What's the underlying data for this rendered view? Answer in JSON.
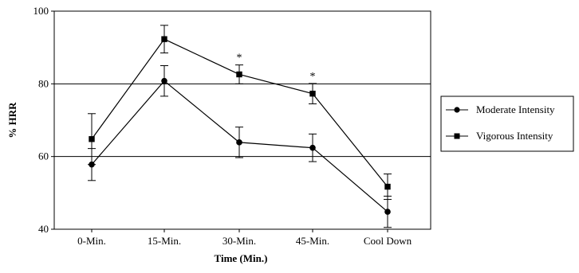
{
  "chart_data": {
    "type": "line",
    "title": "",
    "xlabel": "Time (Min.)",
    "ylabel": "% HRR",
    "categories": [
      "0-Min.",
      "15-Min.",
      "30-Min.",
      "45-Min.",
      "Cool Down"
    ],
    "ylim": [
      40,
      100
    ],
    "yticks": [
      "40",
      "60",
      "80",
      "100"
    ],
    "gridlines_y": [
      60,
      80
    ],
    "legend_position": "right",
    "series": [
      {
        "name": "Moderate Intensity",
        "marker": "circle",
        "values": [
          57.8,
          80.8,
          63.9,
          62.4,
          44.8
        ],
        "error": [
          4.4,
          4.2,
          4.2,
          3.8,
          4.3
        ]
      },
      {
        "name": "Vigorous Intensity",
        "marker": "square",
        "values": [
          64.8,
          92.3,
          82.6,
          77.3,
          51.7
        ],
        "error": [
          7.0,
          3.8,
          2.6,
          2.8,
          3.5
        ]
      }
    ],
    "annotations": [
      {
        "category": "30-Min.",
        "text": "*"
      },
      {
        "category": "45-Min.",
        "text": "*"
      }
    ]
  }
}
